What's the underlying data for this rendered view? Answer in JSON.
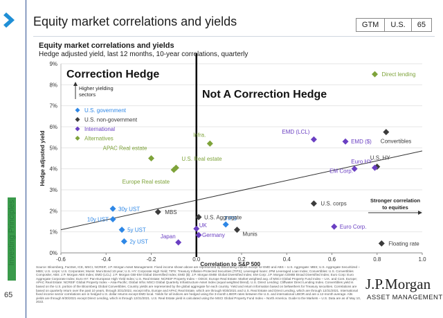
{
  "header": {
    "title": "Equity market correlations and yields",
    "tags": [
      "GTM",
      "U.S.",
      "65"
    ]
  },
  "sidebar": {
    "section_label": "Investing Principles",
    "page_number": "65"
  },
  "chart_data": {
    "type": "scatter",
    "title": "Equity market correlations and yields",
    "subtitle": "Hedge adjusted yield, last 12 months, 10-year correlations, quarterly",
    "xlabel": "Correlation to S&P 500",
    "ylabel": "Hedge adjusted yield",
    "xlim": [
      -0.6,
      1.0
    ],
    "ylim": [
      0,
      9
    ],
    "xticks": [
      "-0.6",
      "-0.4",
      "-0.2",
      "0.0",
      "0.2",
      "0.4",
      "0.6",
      "0.8",
      "1.0"
    ],
    "yticks": [
      "0%",
      "1%",
      "2%",
      "3%",
      "4%",
      "5%",
      "6%",
      "7%",
      "8%",
      "9%"
    ],
    "divider_x": 0.0,
    "legend": {
      "title": "Higher yielding sectors",
      "position": "top-left",
      "items": [
        {
          "label": "U.S. government",
          "color": "#2e87e6"
        },
        {
          "label": "U.S. non-government",
          "color": "#3b3b3b"
        },
        {
          "label": "International",
          "color": "#6a3fc2"
        },
        {
          "label": "Alternatives",
          "color": "#7ea33a"
        }
      ]
    },
    "annotations": {
      "correction_hedge": "Correction Hedge",
      "not_correction_hedge": "Not A Correction Hedge",
      "stronger_correlation": "Stronger correlation to equities"
    },
    "trendline": {
      "x": [
        -0.6,
        1.0
      ],
      "y": [
        1.1,
        4.85
      ]
    },
    "points": [
      {
        "label": "30y UST",
        "x": -0.37,
        "y": 2.1,
        "group": 0
      },
      {
        "label": "10y UST",
        "x": -0.37,
        "y": 1.6,
        "group": 0
      },
      {
        "label": "5y UST",
        "x": -0.33,
        "y": 1.1,
        "group": 0
      },
      {
        "label": "2y UST",
        "x": -0.32,
        "y": 0.55,
        "group": 0
      },
      {
        "label": "TIPS",
        "x": 0.13,
        "y": 1.35,
        "group": 0
      },
      {
        "label": "MBS",
        "x": -0.17,
        "y": 1.95,
        "group": 1
      },
      {
        "label": "U.S. Aggregate",
        "x": 0.01,
        "y": 1.7,
        "group": 1
      },
      {
        "label": "Munis",
        "x": 0.18,
        "y": 1.1,
        "group": 1
      },
      {
        "label": "U.S. corps",
        "x": 0.52,
        "y": 2.35,
        "group": 1
      },
      {
        "label": "U.S. HY",
        "x": 0.8,
        "y": 4.1,
        "group": 1
      },
      {
        "label": "Convertibles",
        "x": 0.84,
        "y": 5.75,
        "group": 1
      },
      {
        "label": "Floating rate",
        "x": 0.82,
        "y": 0.45,
        "group": 1
      },
      {
        "label": "Japan",
        "x": -0.08,
        "y": 0.5,
        "group": 2
      },
      {
        "label": "UK",
        "x": 0.0,
        "y": 1.15,
        "group": 2
      },
      {
        "label": "Germany",
        "x": 0.01,
        "y": 0.85,
        "group": 2
      },
      {
        "label": "EMD (LCL)",
        "x": 0.52,
        "y": 5.4,
        "group": 2
      },
      {
        "label": "EMD ($)",
        "x": 0.66,
        "y": 5.3,
        "group": 2
      },
      {
        "label": "EM Corp.",
        "x": 0.7,
        "y": 4.0,
        "group": 2
      },
      {
        "label": "Euro HY",
        "x": 0.79,
        "y": 4.05,
        "group": 2
      },
      {
        "label": "Euro Corp.",
        "x": 0.61,
        "y": 1.25,
        "group": 2
      },
      {
        "label": "Direct lending",
        "x": 0.79,
        "y": 8.5,
        "group": 3
      },
      {
        "label": "Infra.",
        "x": 0.06,
        "y": 5.2,
        "group": 3
      },
      {
        "label": "APAC Real estate",
        "x": -0.2,
        "y": 4.5,
        "group": 3
      },
      {
        "label": "U.S. Real estate",
        "x": -0.09,
        "y": 4.05,
        "group": 3
      },
      {
        "label": "Europe Real estate",
        "x": -0.1,
        "y": 3.95,
        "group": 3
      }
    ]
  },
  "footnote": "Source: Bloomberg, FactSet, ICE, MSCI, NCREIF, J.P. Morgan Asset Management. Fixed income shown above are represented by Bloomberg indices except for EMD and ABS – U.S. Aggregate: MBS; U.S. Aggregate Securitized – MBS; U.S. corps: U.S. Corporates; Munis: Muni Bond 10-year; U.S. HY: Corporate High Yield; TIPS: Treasury Inflation-Protected Securities (TIPS); Leveraged loans: JPM Leveraged Loan Index; Convertibles: U.S. Convertibles Composite; ABS: J.P. Morgan ABS Index; EMD (LCL): J.P. Morgan GBI-EM Global Diversified Index; EMD ($): J.P. Morgan EMBI Global Diversified Index; EM Corp: J.P. Morgan CEMBI Broad Diversified Index; Euro Corp: Euro Aggregate Corporate Index; Euro HY: Pan-European High Yield Index; U.S. Real Estate: NCREIF Property Index – ODCE; Europe Real Estate: Market weighted avg. of MSCI Global Property Fund Index – U.K. and Cont. Europe; APAC Real Estate: NCREIF Global Property Index – Asia-Pacific; Global Infra: MSCI Global Quarterly Infrastructure Asset Index (equal weighted blend). U.S. Direct Lending: Cliffwater Direct Lending Index. Convertibles yield is based on the U.S. portion of the Bloomberg Global Convertibles. Country yields are represented by the global aggregate for each country. Yield and return information based on bellwethers for Treasury securities. Correlations are based on quarterly return over the past 10 years, through 3/31/2022, except Infra, Europe and APAC Real Estate, which are through 9/30/2021 and U.S. Real Estate and Direct Lending, which are through 12/31/2021. International fixed income sector correlations are in hedged U.S. dollar returns except EMD local. Yields for all indices are hedged using the 3-month LIBOR rates between the U.S. and international LIBOR and are a 12-month average. Alts yields are through 9/30/2021 except Direct Lending, which is through 12/31/2021. U.S. Real Estate yield is calculated using the MSCI Global Property Fund Index – North America. Guide to the Markets – U.S. Data are as of May 10, 2022.",
  "logo": {
    "name": "J.P.Morgan",
    "sub": "ASSET MANAGEMENT"
  }
}
